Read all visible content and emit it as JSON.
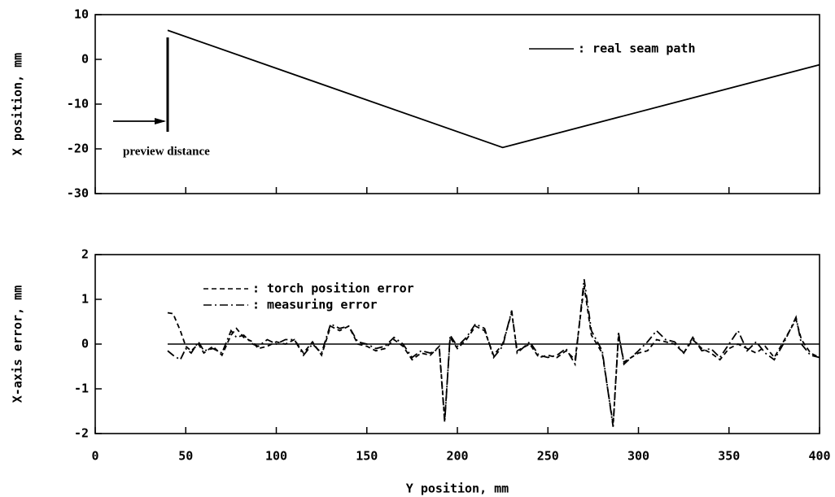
{
  "chart_data": [
    {
      "type": "line",
      "y_label": "X position, mm",
      "xlim": [
        0,
        400
      ],
      "xticks": [
        0,
        50,
        100,
        150,
        200,
        250,
        300,
        350,
        400
      ],
      "xtick_labels": false,
      "ylim": [
        -30,
        10
      ],
      "yticks": [
        -30,
        -20,
        -10,
        0,
        10
      ],
      "legend": "upper right",
      "series": [
        {
          "name": ": real seam path",
          "color": "#000000",
          "dash": "solid",
          "x": [
            40,
            225,
            400
          ],
          "values": [
            6.5,
            -19.7,
            -1.2
          ]
        }
      ],
      "annotation": {
        "text": "preview distance",
        "x": 40
      }
    },
    {
      "type": "line",
      "y_label": "X-axis error, mm",
      "x_label": "Y position, mm",
      "xlim": [
        0,
        400
      ],
      "xticks": [
        0,
        50,
        100,
        150,
        200,
        250,
        300,
        350,
        400
      ],
      "xtick_labels": true,
      "ylim": [
        -2,
        2
      ],
      "yticks": [
        -2,
        -1,
        0,
        1,
        2
      ],
      "legend": "upper left",
      "reference_line": {
        "y": 0,
        "x": [
          40,
          400
        ]
      },
      "series": [
        {
          "name": ": torch position error",
          "color": "#000000",
          "dash": "dashed",
          "x": [
            40,
            43,
            47,
            50,
            53,
            57,
            60,
            65,
            70,
            75,
            78,
            82,
            87,
            90,
            95,
            100,
            105,
            110,
            115,
            120,
            125,
            130,
            135,
            140,
            145,
            150,
            155,
            160,
            165,
            170,
            175,
            180,
            185,
            190,
            193,
            196,
            200,
            205,
            210,
            215,
            220,
            225,
            230,
            233,
            240,
            245,
            250,
            255,
            260,
            265,
            270,
            274,
            280,
            286,
            289,
            292,
            300,
            305,
            310,
            315,
            320,
            325,
            330,
            335,
            340,
            345,
            350,
            355,
            360,
            365,
            370,
            375,
            380,
            387,
            390,
            395,
            400
          ],
          "values": [
            0.7,
            0.68,
            0.3,
            -0.05,
            -0.15,
            0.0,
            -0.2,
            -0.05,
            -0.25,
            0.2,
            0.35,
            0.15,
            0.05,
            -0.1,
            -0.05,
            0.05,
            0.0,
            0.1,
            -0.2,
            0.05,
            -0.25,
            0.4,
            0.3,
            0.4,
            0.0,
            -0.05,
            -0.15,
            -0.1,
            0.1,
            -0.05,
            -0.35,
            -0.2,
            -0.25,
            -0.05,
            -1.7,
            0.15,
            -0.1,
            0.1,
            0.4,
            0.3,
            -0.25,
            0.0,
            0.7,
            -0.15,
            0.0,
            -0.3,
            -0.25,
            -0.3,
            -0.15,
            -0.35,
            1.3,
            0.2,
            -0.2,
            -1.8,
            0.2,
            -0.4,
            -0.2,
            -0.15,
            0.1,
            0.05,
            0.0,
            -0.2,
            0.1,
            -0.1,
            -0.2,
            -0.35,
            -0.1,
            0.0,
            -0.1,
            -0.2,
            -0.05,
            -0.3,
            0.05,
            0.55,
            0.1,
            -0.2,
            -0.3
          ]
        },
        {
          "name": ": measuring error",
          "color": "#000000",
          "dash": "dashdot",
          "x": [
            40,
            43,
            47,
            50,
            53,
            57,
            60,
            65,
            70,
            75,
            78,
            82,
            87,
            90,
            95,
            100,
            105,
            110,
            115,
            120,
            125,
            130,
            135,
            140,
            145,
            150,
            155,
            160,
            165,
            170,
            175,
            180,
            185,
            190,
            193,
            196,
            200,
            205,
            210,
            215,
            220,
            225,
            230,
            233,
            240,
            245,
            250,
            255,
            260,
            265,
            270,
            274,
            280,
            286,
            289,
            292,
            300,
            305,
            310,
            315,
            320,
            325,
            330,
            335,
            340,
            345,
            350,
            355,
            360,
            365,
            370,
            375,
            380,
            387,
            390,
            395,
            400
          ],
          "values": [
            -0.15,
            -0.25,
            -0.35,
            -0.1,
            -0.2,
            0.05,
            -0.15,
            -0.1,
            -0.2,
            0.3,
            0.15,
            0.2,
            0.0,
            -0.05,
            0.1,
            0.0,
            0.1,
            0.1,
            -0.25,
            0.0,
            -0.2,
            0.45,
            0.35,
            0.4,
            0.05,
            0.0,
            -0.1,
            -0.05,
            0.15,
            0.0,
            -0.3,
            -0.15,
            -0.2,
            -0.1,
            -1.75,
            0.2,
            -0.05,
            0.15,
            0.45,
            0.35,
            -0.3,
            -0.05,
            0.75,
            -0.2,
            0.05,
            -0.25,
            -0.3,
            -0.25,
            -0.1,
            -0.45,
            1.45,
            0.3,
            -0.15,
            -1.85,
            0.25,
            -0.45,
            -0.15,
            0.05,
            0.3,
            0.1,
            0.05,
            -0.2,
            0.15,
            -0.15,
            -0.1,
            -0.3,
            0.0,
            0.3,
            -0.15,
            0.05,
            -0.2,
            -0.35,
            0.0,
            0.6,
            0.0,
            -0.25,
            -0.3
          ]
        }
      ]
    }
  ]
}
